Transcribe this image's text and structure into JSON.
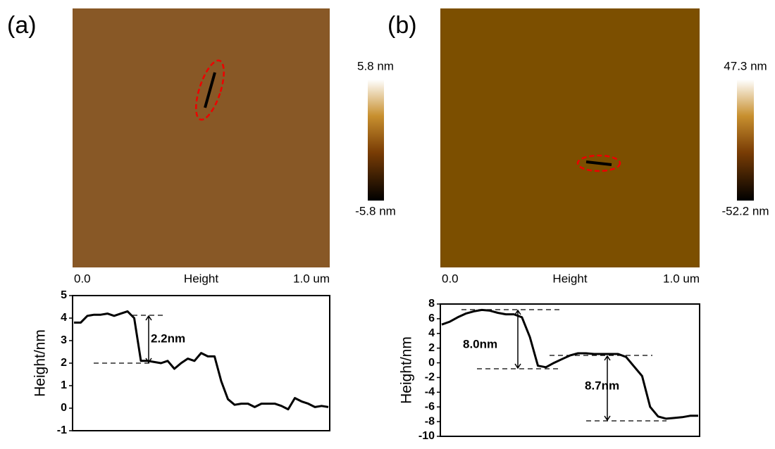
{
  "images": [
    {
      "panel_label": "(a)",
      "x_start": "0.0",
      "x_label": "Height",
      "x_end": "1.0 um",
      "colorbar_max": "5.8 nm",
      "colorbar_min": "-5.8 nm"
    },
    {
      "panel_label": "(b)",
      "x_start": "0.0",
      "x_label": "Height",
      "x_end": "1.0 um",
      "colorbar_max": "47.3 nm",
      "colorbar_min": "-52.2 nm"
    }
  ],
  "chart_data": [
    {
      "type": "line",
      "y_label": "Height/nm",
      "ylim": [
        -1,
        5
      ],
      "yticks": [
        -1,
        0,
        1,
        2,
        3,
        4,
        5
      ],
      "annotations": [
        "2.2nm"
      ],
      "categories": [
        null,
        null,
        null,
        null,
        null,
        null,
        null,
        null,
        null,
        null,
        null,
        null,
        null,
        null,
        null,
        null,
        null,
        null,
        null,
        null,
        null,
        null,
        null,
        null,
        null,
        null,
        null,
        null,
        null,
        null,
        null,
        null,
        null,
        null,
        null,
        null,
        null,
        null,
        null
      ],
      "series": [
        {
          "color": "#000000",
          "values": [
            3.8,
            3.8,
            4.1,
            4.15,
            4.15,
            4.2,
            4.1,
            4.2,
            4.3,
            4.0,
            2.1,
            2.1,
            2.05,
            2.0,
            2.1,
            1.75,
            2.0,
            2.2,
            2.1,
            2.45,
            2.3,
            2.3,
            1.2,
            0.4,
            0.15,
            0.2,
            0.2,
            0.05,
            0.2,
            0.2,
            0.2,
            0.1,
            -0.05,
            0.45,
            0.3,
            0.2,
            0.05,
            0.1,
            0.05
          ]
        }
      ]
    },
    {
      "type": "line",
      "y_label": "Height/nm",
      "ylim": [
        -10,
        8
      ],
      "yticks": [
        -10,
        -8,
        -6,
        -4,
        -2,
        0,
        2,
        4,
        6,
        8
      ],
      "annotations": [
        "8.0nm",
        "8.7nm"
      ],
      "categories": [
        null,
        null,
        null,
        null,
        null,
        null,
        null,
        null,
        null,
        null,
        null,
        null,
        null,
        null,
        null,
        null,
        null,
        null,
        null,
        null,
        null,
        null,
        null,
        null,
        null,
        null,
        null,
        null,
        null,
        null,
        null,
        null,
        null
      ],
      "series": [
        {
          "color": "#000000",
          "values": [
            5.2,
            5.6,
            6.2,
            6.7,
            7.0,
            7.2,
            7.1,
            6.8,
            6.6,
            6.6,
            6.2,
            3.5,
            -0.4,
            -0.6,
            0.0,
            0.5,
            1.0,
            1.3,
            1.3,
            1.2,
            1.2,
            1.2,
            1.2,
            0.8,
            -0.5,
            -1.8,
            -6.0,
            -7.3,
            -7.6,
            -7.5,
            -7.4,
            -7.2,
            -7.2
          ]
        }
      ]
    }
  ]
}
